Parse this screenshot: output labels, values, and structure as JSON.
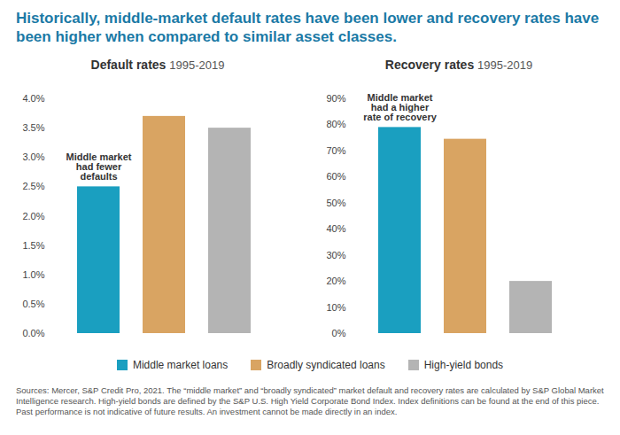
{
  "title": "Historically, middle-market default rates have been lower and recovery rates have been higher when compared to similar asset classes.",
  "source": "Sources: Mercer, S&P Credit Pro, 2021. The “middle market” and “broadly syndicated” market default and recovery rates are calculated by S&P Global Market Intelligence research. High-yield bonds are defined by the S&P U.S. High Yield Corporate Bond Index. Index definitions can be found at the end of this piece. Past performance is not indicative of future results. An investment cannot be made directly in an index.",
  "chart_data": [
    {
      "type": "bar",
      "title": "Default rates",
      "subtitle": "1995-2019",
      "categories": [
        "Middle market loans",
        "Broadly syndicated loans",
        "High-yield bonds"
      ],
      "values": [
        2.5,
        3.7,
        3.5
      ],
      "colors": [
        "#1a9fc0",
        "#d9a462",
        "#b4b4b4"
      ],
      "ylim": [
        0,
        4
      ],
      "yticks": [
        {
          "value": 0,
          "label": "0.0%"
        },
        {
          "value": 0.5,
          "label": "0.5%"
        },
        {
          "value": 1,
          "label": "1.0%"
        },
        {
          "value": 1.5,
          "label": "1.5%"
        },
        {
          "value": 2,
          "label": "2.0%"
        },
        {
          "value": 2.5,
          "label": "2.5%"
        },
        {
          "value": 3,
          "label": "3.0%"
        },
        {
          "value": 3.5,
          "label": "3.5%"
        },
        {
          "value": 4,
          "label": "4.0%"
        }
      ],
      "grid": false,
      "tick_labels": "y",
      "legend": "bottom",
      "annotation": {
        "category": "Middle market loans",
        "text": "Middle market\nhad fewer\ndefaults"
      }
    },
    {
      "type": "bar",
      "title": "Recovery rates",
      "subtitle": "1995-2019",
      "categories": [
        "Middle market loans",
        "Broadly syndicated loans",
        "High-yield bonds"
      ],
      "values": [
        79,
        74.5,
        20
      ],
      "colors": [
        "#1a9fc0",
        "#d9a462",
        "#b4b4b4"
      ],
      "ylim": [
        0,
        90
      ],
      "yticks": [
        {
          "value": 0,
          "label": "0%"
        },
        {
          "value": 10,
          "label": "10%"
        },
        {
          "value": 20,
          "label": "20%"
        },
        {
          "value": 30,
          "label": "30%"
        },
        {
          "value": 40,
          "label": "40%"
        },
        {
          "value": 50,
          "label": "50%"
        },
        {
          "value": 60,
          "label": "60%"
        },
        {
          "value": 70,
          "label": "70%"
        },
        {
          "value": 80,
          "label": "80%"
        },
        {
          "value": 90,
          "label": "90%"
        }
      ],
      "grid": false,
      "tick_labels": "y",
      "legend": "bottom",
      "annotation": {
        "category": "Middle market loans",
        "text": "Middle market\nhad a higher\nrate of recovery"
      }
    }
  ]
}
